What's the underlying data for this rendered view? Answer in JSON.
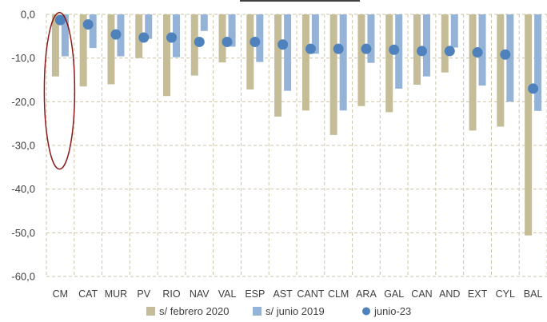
{
  "chart_data": {
    "type": "bar",
    "categories": [
      "CM",
      "CAT",
      "MUR",
      "PV",
      "RIO",
      "NAV",
      "VAL",
      "ESP",
      "AST",
      "CANT",
      "CLM",
      "ARA",
      "GAL",
      "CAN",
      "AND",
      "EXT",
      "CYL",
      "BAL"
    ],
    "series": [
      {
        "name": "s/  febrero 2020",
        "kind": "bar",
        "color": "#c4bd97",
        "values": [
          -14.2,
          -16.5,
          -16.0,
          -10.0,
          -18.7,
          -14.0,
          -11.0,
          -17.2,
          -23.4,
          -22.0,
          -27.6,
          -21.0,
          -22.4,
          -16.1,
          -13.3,
          -26.6,
          -25.7,
          -50.6
        ]
      },
      {
        "name": "s/  junio 2019",
        "kind": "bar",
        "color": "#95b3d7",
        "values": [
          -9.6,
          -7.7,
          -9.6,
          -5.6,
          -9.8,
          -3.8,
          -7.4,
          -10.9,
          -17.5,
          -9.0,
          -22.0,
          -11.1,
          -17.0,
          -14.2,
          -7.6,
          -16.3,
          -20.0,
          -22.1
        ]
      },
      {
        "name": "junio-23",
        "kind": "point",
        "color": "#4f81bd",
        "values": [
          -1.3,
          -2.3,
          -4.6,
          -5.3,
          -5.3,
          -6.3,
          -6.3,
          -6.3,
          -6.9,
          -7.9,
          -7.9,
          -7.9,
          -8.1,
          -8.4,
          -8.4,
          -8.7,
          -9.2,
          -17.0
        ]
      }
    ],
    "ylim": [
      -60,
      0
    ],
    "yticks": [
      "0,0",
      "-10,0",
      "-20,0",
      "-30,0",
      "-40,0",
      "-50,0",
      "-60,0"
    ],
    "grid": true,
    "legend_position": "bottom",
    "highlight_category": "CM",
    "highlight_color": "#8b1a1a"
  }
}
